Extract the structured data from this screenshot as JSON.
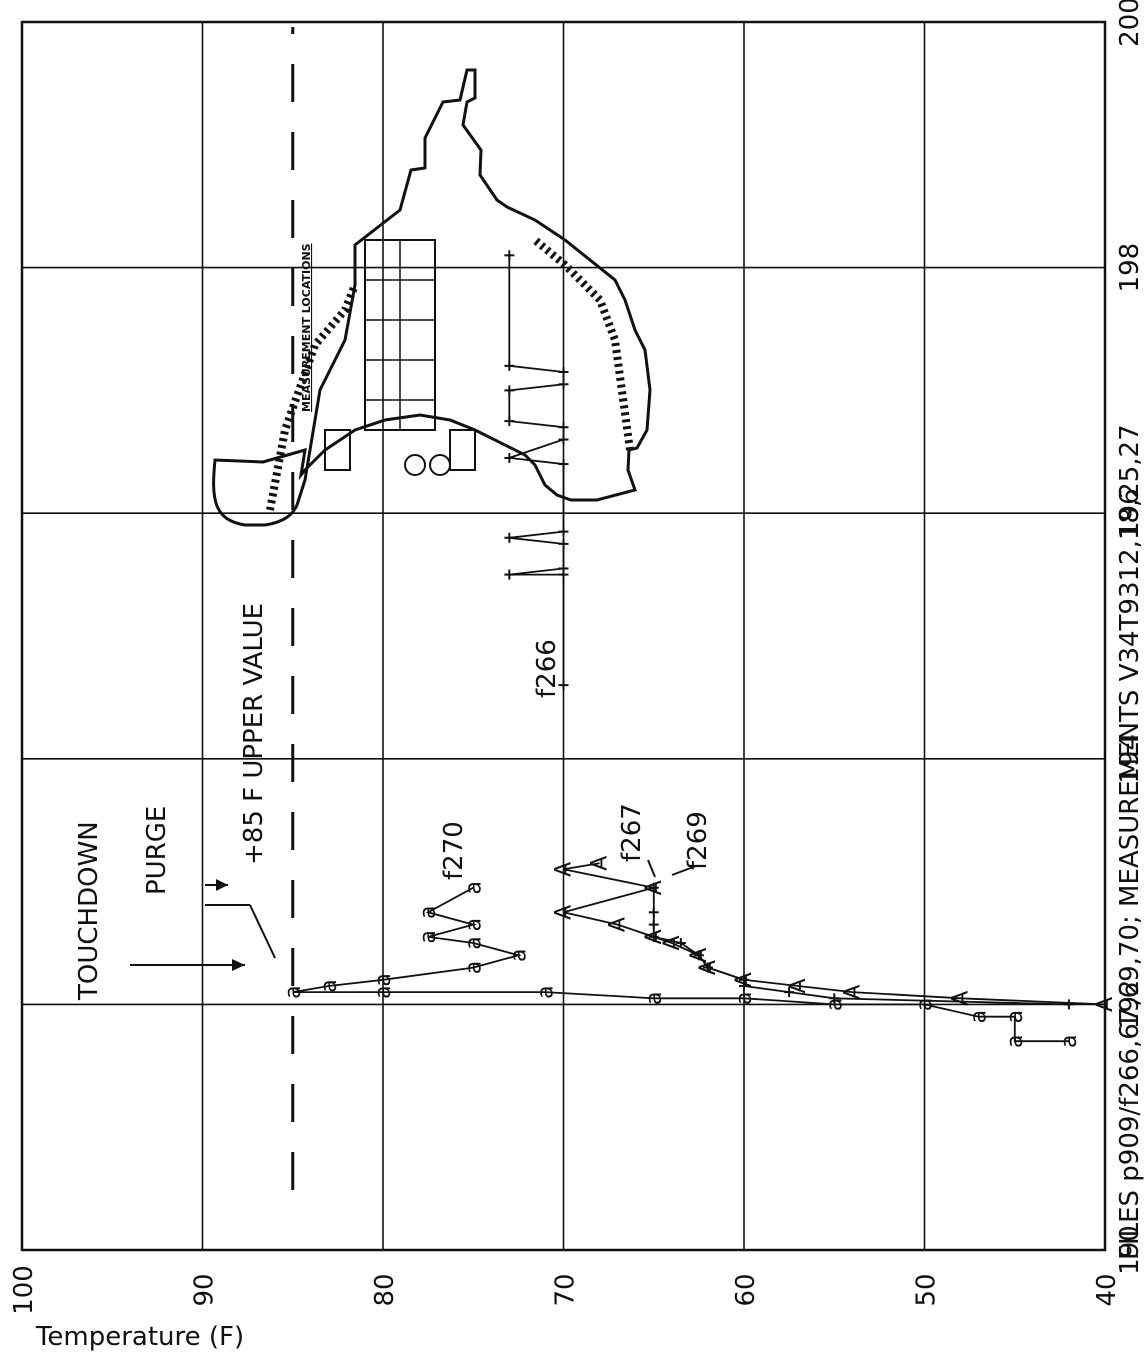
{
  "chart_data": {
    "type": "line",
    "title": "FILES p909/f266,67,69,70; MEASUREMENTS V34T9312,18,25,27",
    "xlabel": "",
    "ylabel": "Temperature (F)",
    "xlim": [
      190,
      200
    ],
    "ylim": [
      40,
      100
    ],
    "x_ticks": [
      "190",
      "192",
      "194",
      "196",
      "198",
      "200"
    ],
    "y_ticks": [
      "40",
      "50",
      "60",
      "70",
      "80",
      "90",
      "100"
    ],
    "grid": true,
    "orientation": "rotated 90 degrees counter-clockwise",
    "annotations": {
      "touchdown": "TOUCHDOWN",
      "purge": "PURGE",
      "upper_value": "+85 F  UPPER VALUE",
      "measurement_locations": "MEASUREMENT LOCATIONS",
      "upper_limit_value": 85,
      "touchdown_x": 192.1,
      "purge_x": 192.8
    },
    "series": [
      {
        "name": "f266",
        "marker": "+",
        "x": [
          194.6,
          195.5,
          195.5,
          195.55,
          195.75,
          195.8,
          195.85,
          196.4,
          196.45,
          196.6,
          196.7,
          196.75,
          197.0,
          197.05,
          197.15,
          197.2,
          198.1
        ],
        "y": [
          70,
          70,
          73,
          70,
          70,
          73,
          70,
          70,
          73,
          70,
          70,
          73,
          73,
          70,
          70,
          73,
          73
        ]
      },
      {
        "name": "f267",
        "marker": "A",
        "x": [
          192.0,
          192.05,
          192.1,
          192.15,
          192.2,
          192.3,
          192.4,
          192.5,
          192.55,
          192.65,
          192.75,
          192.95,
          193.1,
          193.15
        ],
        "y": [
          40,
          48,
          54,
          57,
          60,
          62,
          62.5,
          64,
          65,
          67,
          70,
          65,
          70,
          68
        ]
      },
      {
        "name": "f269",
        "marker": "+",
        "x": [
          192.0,
          192.05,
          192.1,
          192.15,
          192.2,
          192.3,
          192.4,
          192.5,
          192.55,
          192.65,
          192.75,
          192.95
        ],
        "y": [
          42,
          55,
          57.5,
          60,
          60,
          62,
          62.5,
          63.5,
          65,
          65,
          65,
          65
        ]
      },
      {
        "name": "f270",
        "marker": "a",
        "x": [
          191.7,
          191.7,
          191.9,
          191.9,
          192.0,
          192.0,
          192.05,
          192.05,
          192.1,
          192.1,
          192.1,
          192.15,
          192.2,
          192.3,
          192.4,
          192.5,
          192.55,
          192.65,
          192.75,
          192.95
        ],
        "y": [
          42,
          45,
          45,
          47,
          50,
          55,
          60,
          65,
          71,
          80,
          85,
          83,
          80,
          75,
          72.5,
          75,
          77.5,
          75,
          77.5,
          75
        ]
      }
    ]
  }
}
